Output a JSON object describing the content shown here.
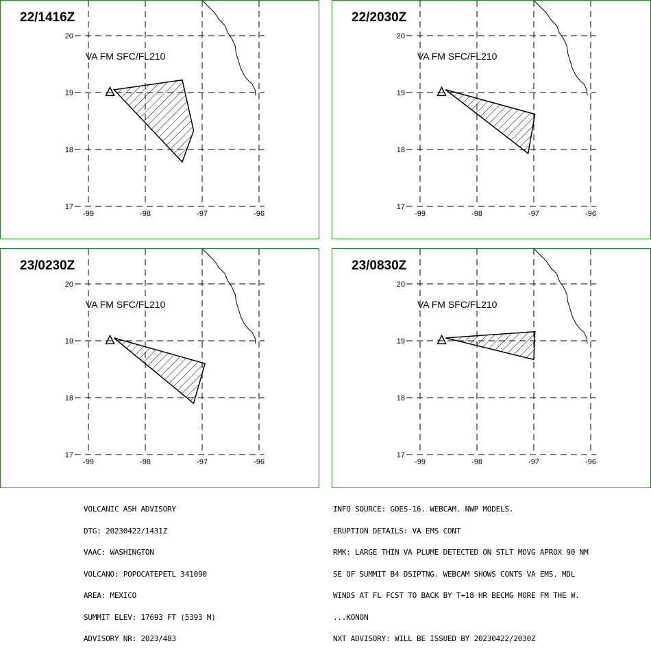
{
  "panels": [
    {
      "title": "22/1416Z",
      "note": "VA FM SFC/FL210",
      "polygon": [
        [
          -98.55,
          19.05
        ],
        [
          -97.35,
          19.22
        ],
        [
          -97.15,
          18.33
        ],
        [
          -97.35,
          17.78
        ],
        [
          -98.55,
          19.05
        ]
      ]
    },
    {
      "title": "22/2030Z",
      "note": "VA FM SFC/FL210",
      "polygon": [
        [
          -98.55,
          19.05
        ],
        [
          -96.98,
          18.62
        ],
        [
          -97.1,
          17.93
        ],
        [
          -98.55,
          19.05
        ]
      ]
    },
    {
      "title": "23/0230Z",
      "note": "VA FM SFC/FL210",
      "polygon": [
        [
          -98.55,
          19.05
        ],
        [
          -96.95,
          18.6
        ],
        [
          -97.15,
          17.9
        ],
        [
          -98.55,
          19.05
        ]
      ]
    },
    {
      "title": "23/0830Z",
      "note": "VA FM SFC/FL210",
      "polygon": [
        [
          -98.55,
          19.05
        ],
        [
          -96.98,
          19.16
        ],
        [
          -97.0,
          18.67
        ],
        [
          -98.55,
          19.05
        ]
      ]
    }
  ],
  "volcano": {
    "lon": -98.62,
    "lat": 19.02
  },
  "axes": {
    "lon_ticks": [
      -99,
      -98,
      -97,
      -96
    ],
    "lat_ticks": [
      17,
      18,
      19,
      20
    ],
    "lon_labels": [
      "-99",
      "-98",
      "-97",
      "-96"
    ],
    "lat_labels": [
      "17",
      "18",
      "19",
      "20"
    ]
  },
  "coastline": [
    [
      -97.0,
      20.62
    ],
    [
      -96.88,
      20.5
    ],
    [
      -96.78,
      20.4
    ],
    [
      -96.7,
      20.28
    ],
    [
      -96.6,
      20.18
    ],
    [
      -96.55,
      20.05
    ],
    [
      -96.48,
      19.95
    ],
    [
      -96.42,
      19.82
    ],
    [
      -96.4,
      19.68
    ],
    [
      -96.36,
      19.55
    ],
    [
      -96.32,
      19.42
    ],
    [
      -96.26,
      19.3
    ],
    [
      -96.18,
      19.2
    ],
    [
      -96.12,
      19.15
    ],
    [
      -96.07,
      19.05
    ],
    [
      -96.06,
      18.95
    ]
  ],
  "colors": {
    "panel_border": "#1a8a1a",
    "grid": "#000000",
    "polygon_stroke": "#000000",
    "hatch": "#000000"
  },
  "advisory_left": [
    "VOLCANIC ASH ADVISORY",
    "DTG: 20230422/1431Z",
    "VAAC: WASHINGTON",
    "VOLCANO: POPOCATEPETL 341090",
    "AREA: MEXICO",
    "SUMMIT ELEV: 17693 FT (5393 M)",
    "ADVISORY NR: 2023/483"
  ],
  "advisory_right": [
    "INFO SOURCE: GOES-16. WEBCAM. NWP MODELS.",
    "ERUPTION DETAILS: VA EMS CONT",
    "RMK: LARGE THIN VA PLUME DETECTED ON STLT MOVG APROX 90 NM",
    "SE OF SUMMIT B4 DSIPTNG. WEBCAM SHOWS CONTS VA EMS. MDL",
    "WINDS AT FL FCST TO BACK BY T+18 HR BECMG MORE FM THE W.",
    "...KONON",
    "NXT ADVISORY: WILL BE ISSUED BY 20230422/2030Z"
  ]
}
